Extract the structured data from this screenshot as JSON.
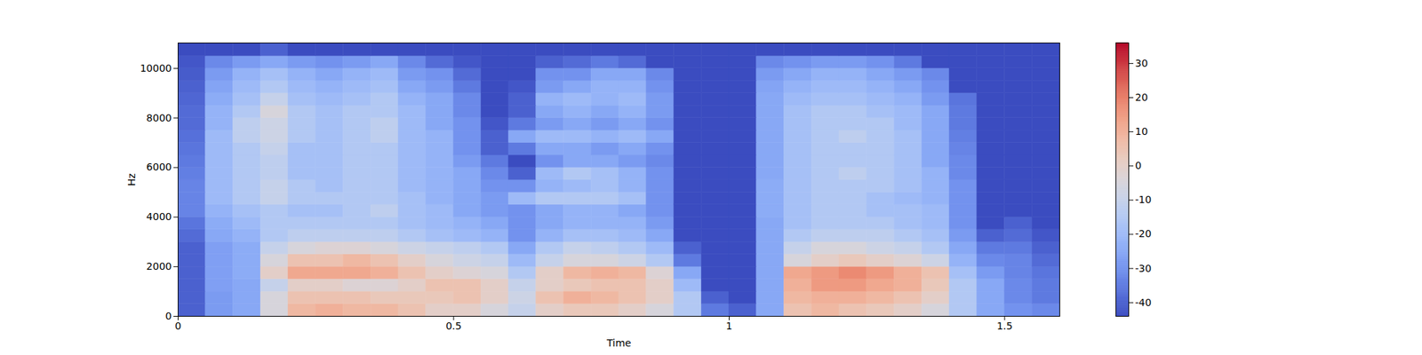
{
  "chart_data": {
    "type": "heatmap",
    "x_label": "Time",
    "y_label": "Hz",
    "xlim": [
      0,
      1.6
    ],
    "xticks": [
      0,
      0.5,
      1,
      1.5
    ],
    "ylim": [
      0,
      11025
    ],
    "yticks": [
      0,
      2000,
      4000,
      6000,
      8000,
      10000
    ],
    "time_bins": [
      0,
      0.05,
      0.1,
      0.15,
      0.2,
      0.25,
      0.3,
      0.35,
      0.4,
      0.45,
      0.5,
      0.55,
      0.6,
      0.65,
      0.7,
      0.75,
      0.8,
      0.85,
      0.9,
      0.95,
      1.0,
      1.05,
      1.1,
      1.15,
      1.2,
      1.25,
      1.3,
      1.35,
      1.4,
      1.45,
      1.5,
      1.55,
      1.6
    ],
    "freq_bins": [
      0,
      500,
      1000,
      1500,
      2000,
      2500,
      3000,
      3500,
      4000,
      4500,
      5000,
      5500,
      6000,
      6500,
      7000,
      7500,
      8000,
      8500,
      9000,
      9500,
      10000,
      10500,
      11025
    ],
    "values": [
      [
        -40,
        -28,
        -25,
        -5,
        8,
        10,
        8,
        8,
        5,
        0,
        0,
        -5,
        -10,
        0,
        3,
        3,
        0,
        -5,
        -15,
        -35,
        -40,
        -25,
        5,
        8,
        5,
        3,
        0,
        -5,
        -15,
        -25,
        -30,
        -32
      ],
      [
        -40,
        -28,
        -25,
        -5,
        5,
        5,
        5,
        3,
        3,
        3,
        5,
        0,
        -8,
        5,
        10,
        8,
        5,
        0,
        -15,
        -40,
        -44,
        -25,
        8,
        10,
        10,
        8,
        5,
        0,
        -15,
        -25,
        -32,
        -35
      ],
      [
        -40,
        -27,
        -25,
        -10,
        0,
        0,
        -3,
        -3,
        0,
        5,
        5,
        0,
        -10,
        0,
        3,
        5,
        5,
        0,
        -20,
        -44,
        -44,
        -25,
        10,
        15,
        15,
        12,
        10,
        3,
        -15,
        -25,
        -32,
        -35
      ],
      [
        -40,
        -27,
        -24,
        0,
        12,
        12,
        12,
        10,
        5,
        0,
        -3,
        -5,
        -15,
        0,
        8,
        10,
        8,
        -3,
        -25,
        -44,
        -44,
        -25,
        12,
        15,
        18,
        15,
        10,
        5,
        -18,
        -28,
        -33,
        -36
      ],
      [
        -40,
        -27,
        -24,
        -5,
        5,
        5,
        8,
        5,
        0,
        -5,
        -8,
        -10,
        -20,
        -10,
        -5,
        -5,
        -8,
        -15,
        -35,
        -44,
        -44,
        -25,
        -5,
        0,
        3,
        0,
        -3,
        -8,
        -22,
        -32,
        -33,
        -38
      ],
      [
        -40,
        -27,
        -24,
        -10,
        -5,
        -3,
        -3,
        -5,
        -8,
        -10,
        -12,
        -15,
        -25,
        -15,
        -10,
        -12,
        -15,
        -20,
        -40,
        -44,
        -44,
        -25,
        -10,
        -5,
        -5,
        -8,
        -10,
        -15,
        -25,
        -35,
        -35,
        -40
      ],
      [
        -38,
        -25,
        -22,
        -15,
        -12,
        -12,
        -12,
        -12,
        -15,
        -18,
        -20,
        -22,
        -30,
        -22,
        -18,
        -18,
        -20,
        -25,
        -44,
        -44,
        -44,
        -25,
        -15,
        -12,
        -12,
        -12,
        -15,
        -18,
        -28,
        -40,
        -38,
        -42
      ],
      [
        -36,
        -24,
        -20,
        -15,
        -15,
        -15,
        -15,
        -15,
        -18,
        -20,
        -22,
        -25,
        -30,
        -25,
        -22,
        -22,
        -22,
        -28,
        -44,
        -44,
        -44,
        -25,
        -18,
        -15,
        -15,
        -15,
        -18,
        -20,
        -30,
        -44,
        -40,
        -44
      ],
      [
        -33,
        -22,
        -18,
        -15,
        -18,
        -18,
        -15,
        -12,
        -18,
        -20,
        -25,
        -28,
        -30,
        -25,
        -22,
        -22,
        -25,
        -30,
        -44,
        -44,
        -44,
        -24,
        -18,
        -15,
        -15,
        -18,
        -18,
        -20,
        -30,
        -44,
        -44,
        -44
      ],
      [
        -33,
        -20,
        -15,
        -10,
        -15,
        -15,
        -15,
        -15,
        -18,
        -22,
        -25,
        -28,
        -20,
        -15,
        -15,
        -15,
        -18,
        -30,
        -44,
        -44,
        -44,
        -24,
        -18,
        -15,
        -15,
        -18,
        -20,
        -22,
        -30,
        -44,
        -44,
        -44
      ],
      [
        -33,
        -20,
        -15,
        -10,
        -15,
        -18,
        -15,
        -15,
        -20,
        -22,
        -25,
        -30,
        -30,
        -22,
        -20,
        -18,
        -22,
        -30,
        -44,
        -44,
        -44,
        -24,
        -18,
        -15,
        -15,
        -15,
        -18,
        -22,
        -30,
        -44,
        -44,
        -44
      ],
      [
        -34,
        -20,
        -15,
        -12,
        -18,
        -18,
        -15,
        -15,
        -20,
        -22,
        -25,
        -32,
        -40,
        -20,
        -15,
        -18,
        -22,
        -30,
        -44,
        -44,
        -44,
        -25,
        -18,
        -15,
        -12,
        -15,
        -18,
        -22,
        -32,
        -44,
        -44,
        -44
      ],
      [
        -35,
        -20,
        -15,
        -12,
        -18,
        -18,
        -15,
        -15,
        -20,
        -22,
        -28,
        -35,
        -44,
        -30,
        -25,
        -25,
        -28,
        -32,
        -44,
        -44,
        -44,
        -25,
        -18,
        -15,
        -15,
        -15,
        -18,
        -25,
        -32,
        -44,
        -44,
        -44
      ],
      [
        -36,
        -20,
        -15,
        -10,
        -18,
        -18,
        -15,
        -15,
        -20,
        -22,
        -30,
        -40,
        -35,
        -25,
        -25,
        -28,
        -25,
        -30,
        -44,
        -44,
        -44,
        -25,
        -18,
        -15,
        -15,
        -15,
        -18,
        -25,
        -33,
        -44,
        -44,
        -44
      ],
      [
        -37,
        -20,
        -12,
        -8,
        -15,
        -18,
        -15,
        -12,
        -20,
        -22,
        -30,
        -40,
        -25,
        -20,
        -20,
        -22,
        -20,
        -25,
        -44,
        -44,
        -44,
        -25,
        -18,
        -15,
        -12,
        -15,
        -18,
        -25,
        -34,
        -44,
        -44,
        -44
      ],
      [
        -38,
        -22,
        -12,
        -8,
        -15,
        -18,
        -15,
        -12,
        -20,
        -25,
        -30,
        -42,
        -35,
        -28,
        -25,
        -28,
        -25,
        -30,
        -44,
        -44,
        -44,
        -25,
        -18,
        -15,
        -15,
        -15,
        -20,
        -25,
        -35,
        -44,
        -44,
        -44
      ],
      [
        -38,
        -22,
        -15,
        -5,
        -15,
        -18,
        -15,
        -15,
        -20,
        -25,
        -32,
        -44,
        -40,
        -25,
        -22,
        -25,
        -22,
        -28,
        -44,
        -44,
        -44,
        -25,
        -18,
        -15,
        -15,
        -18,
        -20,
        -25,
        -35,
        -44,
        -44,
        -44
      ],
      [
        -39,
        -24,
        -18,
        -10,
        -18,
        -20,
        -18,
        -15,
        -22,
        -25,
        -32,
        -44,
        -40,
        -22,
        -20,
        -22,
        -20,
        -28,
        -44,
        -44,
        -44,
        -25,
        -20,
        -18,
        -18,
        -20,
        -22,
        -28,
        -36,
        -44,
        -44,
        -44
      ],
      [
        -40,
        -26,
        -20,
        -15,
        -20,
        -22,
        -20,
        -18,
        -25,
        -28,
        -35,
        -44,
        -42,
        -28,
        -25,
        -22,
        -22,
        -30,
        -44,
        -44,
        -44,
        -26,
        -22,
        -20,
        -20,
        -22,
        -25,
        -30,
        -44,
        -44,
        -44,
        -44
      ],
      [
        -41,
        -28,
        -22,
        -18,
        -22,
        -25,
        -22,
        -20,
        -28,
        -30,
        -38,
        -44,
        -44,
        -30,
        -30,
        -25,
        -25,
        -32,
        -44,
        -44,
        -44,
        -28,
        -25,
        -22,
        -22,
        -25,
        -28,
        -32,
        -44,
        -44,
        -44,
        -44
      ],
      [
        -42,
        -32,
        -28,
        -25,
        -28,
        -30,
        -28,
        -25,
        -32,
        -38,
        -42,
        -44,
        -44,
        -40,
        -38,
        -35,
        -38,
        -44,
        -44,
        -44,
        -44,
        -32,
        -30,
        -28,
        -28,
        -30,
        -35,
        -44,
        -44,
        -44,
        -44,
        -44
      ],
      [
        -44,
        -44,
        -44,
        -40,
        -44,
        -44,
        -44,
        -44,
        -44,
        -44,
        -44,
        -44,
        -44,
        -44,
        -44,
        -44,
        -44,
        -44,
        -44,
        -44,
        -44,
        -44,
        -44,
        -44,
        -44,
        -44,
        -44,
        -44,
        -44,
        -44,
        -44,
        -44
      ]
    ],
    "colorbar": {
      "range": [
        -44,
        36
      ],
      "ticks": [
        -40,
        -30,
        -20,
        -10,
        0,
        10,
        20,
        30
      ]
    }
  }
}
